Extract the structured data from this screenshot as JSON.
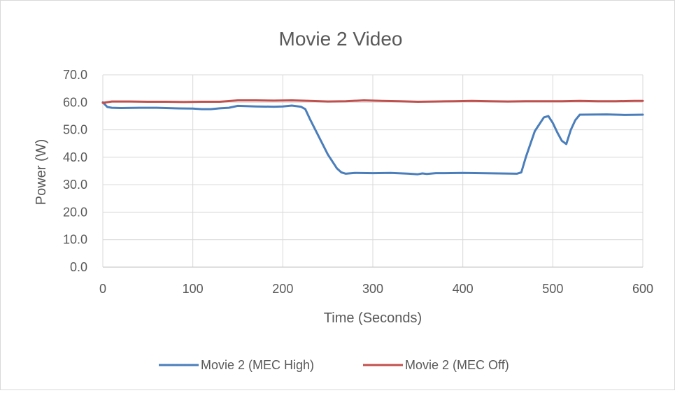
{
  "chart_data": {
    "type": "line",
    "title": "Movie 2 Video",
    "xlabel": "Time (Seconds)",
    "ylabel": "Power (W)",
    "xlim": [
      0,
      600
    ],
    "ylim": [
      0,
      70
    ],
    "x_ticks": [
      0,
      100,
      200,
      300,
      400,
      500,
      600
    ],
    "x_tick_labels": [
      "0",
      "100",
      "200",
      "300",
      "400",
      "500",
      "600"
    ],
    "y_ticks": [
      0,
      10,
      20,
      30,
      40,
      50,
      60,
      70
    ],
    "y_tick_labels": [
      "0.0",
      "10.0",
      "20.0",
      "30.0",
      "40.0",
      "50.0",
      "60.0",
      "70.0"
    ],
    "grid": true,
    "legend_position": "bottom",
    "series": [
      {
        "name": "Movie 2 (MEC High)",
        "color": "#4a7ebb",
        "x": [
          0,
          5,
          10,
          20,
          40,
          60,
          80,
          100,
          110,
          120,
          130,
          140,
          150,
          170,
          190,
          200,
          210,
          220,
          225,
          230,
          240,
          250,
          260,
          265,
          270,
          280,
          300,
          320,
          340,
          350,
          355,
          360,
          370,
          380,
          400,
          420,
          440,
          460,
          465,
          470,
          480,
          490,
          495,
          500,
          505,
          510,
          515,
          520,
          525,
          530,
          560,
          580,
          600
        ],
        "y": [
          60.0,
          58.3,
          58.0,
          57.9,
          58.0,
          58.0,
          57.8,
          57.7,
          57.5,
          57.5,
          57.8,
          58.0,
          58.7,
          58.5,
          58.4,
          58.5,
          58.8,
          58.4,
          57.5,
          54.0,
          47.5,
          41.0,
          36.0,
          34.5,
          34.0,
          34.3,
          34.2,
          34.3,
          34.0,
          33.8,
          34.1,
          33.9,
          34.2,
          34.2,
          34.3,
          34.2,
          34.1,
          34.0,
          34.5,
          40.0,
          49.5,
          54.5,
          55.0,
          52.5,
          49.0,
          46.0,
          44.8,
          50.0,
          53.5,
          55.5,
          55.6,
          55.4,
          55.5
        ]
      },
      {
        "name": "Movie 2 (MEC Off)",
        "color": "#c0504d",
        "x": [
          0,
          10,
          30,
          50,
          70,
          90,
          110,
          130,
          150,
          170,
          190,
          210,
          230,
          250,
          270,
          290,
          310,
          330,
          350,
          370,
          390,
          410,
          430,
          450,
          470,
          490,
          510,
          530,
          550,
          570,
          590,
          600
        ],
        "y": [
          59.8,
          60.3,
          60.3,
          60.2,
          60.2,
          60.1,
          60.2,
          60.2,
          60.7,
          60.7,
          60.6,
          60.7,
          60.5,
          60.3,
          60.4,
          60.7,
          60.5,
          60.4,
          60.2,
          60.3,
          60.4,
          60.5,
          60.4,
          60.3,
          60.4,
          60.4,
          60.4,
          60.5,
          60.4,
          60.4,
          60.5,
          60.5
        ]
      }
    ]
  }
}
